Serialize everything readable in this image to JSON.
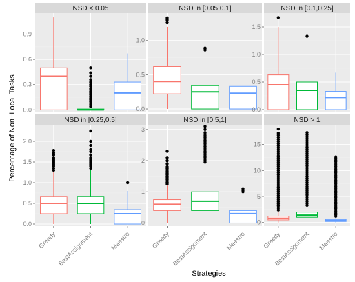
{
  "chart_data": {
    "type": "boxplot",
    "xlabel": "Strategies",
    "ylabel": "Percentage of Non−Local Tasks",
    "categories": [
      "Greedy",
      "BestAssignment",
      "Maestro"
    ],
    "colors": {
      "Greedy": "#f8766d",
      "BestAssignment": "#00ba38",
      "Maestro": "#619cff",
      "panel_bg": "#ebebeb",
      "strip_bg": "#d9d9d9",
      "grid": "#ffffff"
    },
    "facets": [
      {
        "title": "NSD < 0.05",
        "ylim": [
          -0.03,
          1.15
        ],
        "yticks": [
          0.0,
          0.3,
          0.6,
          0.9
        ],
        "tick_labels": [
          "0.0",
          "0.3",
          "0.6",
          "0.9"
        ],
        "show_x_labels": false,
        "boxes": [
          {
            "category": "Greedy",
            "min": 0.0,
            "q1": 0.0,
            "median": 0.4,
            "q3": 0.5,
            "max": 1.1,
            "outliers": []
          },
          {
            "category": "BestAssignment",
            "min": 0.0,
            "q1": 0.0,
            "median": 0.0,
            "q3": 0.01,
            "max": 0.01,
            "outliers": [
              0.04,
              0.06,
              0.08,
              0.1,
              0.12,
              0.14,
              0.16,
              0.18,
              0.2,
              0.22,
              0.25,
              0.28,
              0.3,
              0.33,
              0.36,
              0.4,
              0.44,
              0.5
            ]
          },
          {
            "category": "Maestro",
            "min": 0.0,
            "q1": 0.0,
            "median": 0.2,
            "q3": 0.33,
            "max": 0.67,
            "outliers": []
          }
        ]
      },
      {
        "title": "NSD in [0.05,0.1]",
        "ylim": [
          -0.05,
          1.4
        ],
        "yticks": [
          0.0,
          0.5,
          1.0
        ],
        "tick_labels": [
          "0.0",
          "0.5",
          "1.0"
        ],
        "show_x_labels": false,
        "boxes": [
          {
            "category": "Greedy",
            "min": 0.0,
            "q1": 0.22,
            "median": 0.4,
            "q3": 0.62,
            "max": 1.2,
            "outliers": [
              1.26,
              1.3,
              1.33
            ]
          },
          {
            "category": "BestAssignment",
            "min": 0.0,
            "q1": 0.0,
            "median": 0.25,
            "q3": 0.34,
            "max": 0.82,
            "outliers": [
              0.86,
              0.88,
              0.89
            ]
          },
          {
            "category": "Maestro",
            "min": 0.0,
            "q1": 0.0,
            "median": 0.23,
            "q3": 0.33,
            "max": 0.8,
            "outliers": []
          }
        ]
      },
      {
        "title": "NSD in [0.1,0.25]",
        "ylim": [
          -0.05,
          1.75
        ],
        "yticks": [
          0.0,
          0.5,
          1.0,
          1.5
        ],
        "tick_labels": [
          "0.0",
          "0.5",
          "1.0",
          "1.5"
        ],
        "show_x_labels": false,
        "boxes": [
          {
            "category": "Greedy",
            "min": 0.0,
            "q1": 0.0,
            "median": 0.45,
            "q3": 0.63,
            "max": 1.5,
            "outliers": [
              1.67
            ]
          },
          {
            "category": "BestAssignment",
            "min": 0.0,
            "q1": 0.0,
            "median": 0.35,
            "q3": 0.5,
            "max": 1.2,
            "outliers": [
              1.33
            ]
          },
          {
            "category": "Maestro",
            "min": 0.0,
            "q1": 0.0,
            "median": 0.22,
            "q3": 0.33,
            "max": 0.67,
            "outliers": []
          }
        ]
      },
      {
        "title": "NSD  in [0.25,0.5]",
        "ylim": [
          -0.05,
          2.4
        ],
        "yticks": [
          0.0,
          0.5,
          1.0,
          1.5,
          2.0
        ],
        "tick_labels": [
          "0.0",
          "0.5",
          "1.0",
          "1.5",
          "2.0"
        ],
        "show_x_labels": true,
        "boxes": [
          {
            "category": "Greedy",
            "min": 0.0,
            "q1": 0.25,
            "median": 0.5,
            "q3": 0.67,
            "max": 1.25,
            "outliers": [
              1.3,
              1.35,
              1.4,
              1.45,
              1.5,
              1.55,
              1.6,
              1.67,
              1.72,
              1.78
            ]
          },
          {
            "category": "BestAssignment",
            "min": 0.0,
            "q1": 0.25,
            "median": 0.5,
            "q3": 0.67,
            "max": 1.3,
            "outliers": [
              1.35,
              1.4,
              1.45,
              1.5,
              1.55,
              1.6,
              1.67,
              1.75,
              1.8,
              1.9,
              2.0,
              2.25
            ]
          },
          {
            "category": "Maestro",
            "min": 0.0,
            "q1": 0.0,
            "median": 0.25,
            "q3": 0.35,
            "max": 0.8,
            "outliers": [
              1.0
            ]
          }
        ]
      },
      {
        "title": "NSD  in [0.5,1]",
        "ylim": [
          -0.1,
          3.15
        ],
        "yticks": [
          0,
          1,
          2,
          3
        ],
        "tick_labels": [
          "0",
          "1",
          "2",
          "3"
        ],
        "show_x_labels": true,
        "boxes": [
          {
            "category": "Greedy",
            "min": 0.0,
            "q1": 0.4,
            "median": 0.6,
            "q3": 0.75,
            "max": 1.2,
            "outliers": [
              1.25,
              1.3,
              1.35,
              1.4,
              1.45,
              1.5,
              1.55,
              1.6,
              1.65,
              1.7,
              1.75,
              1.8,
              1.9,
              2.0,
              2.1,
              2.3
            ]
          },
          {
            "category": "BestAssignment",
            "min": 0.0,
            "q1": 0.4,
            "median": 0.7,
            "q3": 1.0,
            "max": 1.9,
            "outliers": [
              1.95,
              2.0,
              2.05,
              2.1,
              2.15,
              2.2,
              2.25,
              2.3,
              2.35,
              2.4,
              2.45,
              2.5,
              2.55,
              2.6,
              2.65,
              2.7,
              2.75,
              2.8,
              2.85,
              2.9,
              3.0,
              3.1
            ]
          },
          {
            "category": "Maestro",
            "min": 0.0,
            "q1": 0.0,
            "median": 0.3,
            "q3": 0.4,
            "max": 0.9,
            "outliers": [
              1.0,
              1.05,
              1.1
            ]
          }
        ]
      },
      {
        "title": "NSD > 1",
        "ylim": [
          -0.7,
          18.8
        ],
        "yticks": [
          0,
          5,
          10,
          15
        ],
        "tick_labels": [
          "0",
          "5",
          "10",
          "15"
        ],
        "show_x_labels": true,
        "boxes": [
          {
            "category": "Greedy",
            "min": 0.0,
            "q1": 0.5,
            "median": 0.8,
            "q3": 1.2,
            "max": 2.2,
            "outliers": [
              2.4,
              2.8,
              3.2,
              3.6,
              4.0,
              4.4,
              4.8,
              5.2,
              5.6,
              6.0,
              6.4,
              6.8,
              7.2,
              7.6,
              8.0,
              8.4,
              8.8,
              9.2,
              9.6,
              10.0,
              10.4,
              10.8,
              11.2,
              11.6,
              12.0,
              12.4,
              12.8,
              13.2,
              13.6,
              14.0,
              14.4,
              14.8,
              15.2,
              15.6,
              16.0,
              16.4,
              16.8,
              17.2,
              18.0
            ]
          },
          {
            "category": "BestAssignment",
            "min": 0.0,
            "q1": 1.0,
            "median": 1.4,
            "q3": 2.0,
            "max": 3.0,
            "outliers": [
              3.3,
              3.7,
              4.1,
              4.5,
              4.9,
              5.3,
              5.7,
              6.1,
              6.5,
              6.9,
              7.3,
              7.7,
              8.1,
              8.5,
              8.9,
              9.3,
              9.7,
              10.1,
              10.5,
              10.9,
              11.3,
              11.7,
              12.1,
              12.5,
              12.9,
              13.3,
              13.7,
              14.1,
              14.5,
              14.9,
              15.3,
              15.7,
              16.1,
              16.5,
              16.9,
              17.3
            ]
          },
          {
            "category": "Maestro",
            "min": 0.0,
            "q1": 0.2,
            "median": 0.4,
            "q3": 0.6,
            "max": 1.0,
            "outliers": [
              1.2,
              1.5,
              1.8,
              2.1,
              2.4,
              2.7,
              3.0,
              3.3,
              3.6,
              3.9,
              4.2,
              4.5,
              4.8,
              5.1,
              5.4,
              5.7,
              6.0,
              6.3,
              6.6,
              6.9,
              7.2,
              7.5,
              7.8,
              8.1,
              8.4,
              8.7,
              9.0,
              9.3,
              9.6,
              9.9,
              10.2,
              10.5,
              10.8,
              11.1,
              11.4,
              11.7,
              12.0,
              12.3,
              12.6
            ]
          }
        ]
      }
    ]
  }
}
